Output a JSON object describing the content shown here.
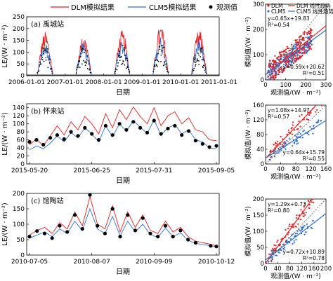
{
  "legend": {
    "items": [
      {
        "name": "DLM模拟结果",
        "color": "#e02020",
        "kind": "line"
      },
      {
        "name": "CLM5模拟结果",
        "color": "#3070d0",
        "kind": "line"
      },
      {
        "name": "观测值",
        "color": "#000000",
        "kind": "dot"
      }
    ]
  },
  "chart_data": [
    {
      "id": "a",
      "type": "line",
      "panel_label": "(a) 禹城站",
      "xlabel": "日期",
      "ylabel": "LE/(W · m⁻²)",
      "ylim": [
        0,
        250
      ],
      "yticks": [
        0,
        50,
        100,
        150,
        200,
        250
      ],
      "xlim": [
        "2006-01-01",
        "2011-01-01"
      ],
      "xticks": [
        "2006-01-01",
        "2007-01-01",
        "2008-01-01",
        "2009-01-01",
        "2010-01-01",
        "2011-01-01"
      ],
      "note_series": "Seasonal pulses each growing season; values approx.",
      "seasons": [
        {
          "start": "2006-05-01",
          "peak_dlm": 185,
          "peak_clm": 140,
          "peak_obs": 120
        },
        {
          "start": "2007-05-01",
          "peak_dlm": 175,
          "peak_clm": 140,
          "peak_obs": 120
        },
        {
          "start": "2008-05-01",
          "peak_dlm": 190,
          "peak_clm": 150,
          "peak_obs": 130
        },
        {
          "start": "2009-05-01",
          "peak_dlm": 215,
          "peak_clm": 165,
          "peak_obs": 140
        },
        {
          "start": "2010-05-01",
          "peak_dlm": 195,
          "peak_clm": 150,
          "peak_obs": 130
        }
      ]
    },
    {
      "id": "b",
      "type": "line",
      "panel_label": "(b) 怀来站",
      "xlabel": "日期",
      "ylabel": "LE/(W · m⁻²)",
      "ylim": [
        0,
        150
      ],
      "yticks": [
        0,
        20,
        40,
        60,
        80,
        100,
        120,
        140
      ],
      "xticks": [
        "2015-05-20",
        "2015-06-25",
        "2015-07-31",
        "2015-09-05"
      ],
      "x_days": [
        0,
        4,
        8,
        12,
        16,
        20,
        24,
        28,
        32,
        36,
        40,
        44,
        48,
        52,
        56,
        60,
        64,
        68,
        72,
        76,
        80,
        84,
        88,
        92,
        96,
        100,
        104,
        108
      ],
      "dlm": [
        48,
        62,
        45,
        70,
        95,
        72,
        105,
        85,
        118,
        100,
        75,
        125,
        90,
        135,
        110,
        142,
        118,
        100,
        140,
        95,
        120,
        130,
        100,
        115,
        85,
        80,
        60,
        58
      ],
      "clm": [
        35,
        45,
        38,
        52,
        70,
        55,
        78,
        65,
        90,
        75,
        55,
        95,
        68,
        100,
        82,
        108,
        92,
        76,
        110,
        72,
        90,
        98,
        75,
        85,
        60,
        55,
        40,
        38
      ],
      "obs": [
        55,
        60,
        48,
        65,
        72,
        62,
        80,
        70,
        90,
        75,
        60,
        95,
        72,
        100,
        85,
        105,
        90,
        78,
        108,
        75,
        88,
        95,
        72,
        82,
        58,
        50,
        42,
        45
      ]
    },
    {
      "id": "c",
      "type": "line",
      "panel_label": "(c) 馆陶站",
      "xlabel": "日期",
      "ylabel": "LE/(W · m⁻²)",
      "ylim": [
        0,
        200
      ],
      "yticks": [
        0,
        50,
        100,
        150,
        200
      ],
      "xticks": [
        "2010-07-05",
        "2010-08-07",
        "2010-09-09",
        "2010-10-12"
      ],
      "x_days": [
        0,
        4,
        8,
        12,
        16,
        20,
        24,
        28,
        32,
        36,
        40,
        44,
        48,
        52,
        56,
        60,
        64,
        68,
        72,
        76,
        80,
        84,
        88,
        96,
        99
      ],
      "dlm": [
        65,
        80,
        90,
        70,
        105,
        85,
        140,
        95,
        190,
        100,
        85,
        160,
        75,
        140,
        90,
        130,
        80,
        70,
        110,
        75,
        90,
        60,
        45,
        35,
        30
      ],
      "clm": [
        55,
        65,
        75,
        60,
        85,
        70,
        110,
        80,
        150,
        85,
        70,
        125,
        62,
        110,
        75,
        100,
        66,
        58,
        88,
        60,
        72,
        48,
        38,
        30,
        26
      ],
      "obs": [
        60,
        78,
        70,
        55,
        95,
        75,
        130,
        85,
        195,
        95,
        70,
        150,
        60,
        130,
        80,
        120,
        70,
        60,
        95,
        60,
        80,
        50,
        40,
        30,
        28
      ]
    }
  ],
  "scatter_data": [
    {
      "id": "a",
      "type": "scatter",
      "xlabel": "观测值/(W · m⁻²)",
      "ylabel": "模拟值/(W · m⁻²)",
      "xlim": [
        0,
        300
      ],
      "ylim": [
        0,
        300
      ],
      "xticks": [
        0,
        100,
        200,
        300
      ],
      "yticks": [
        0,
        100,
        200,
        300
      ],
      "legend_items": [
        {
          "name": "DLM",
          "color": "#e02020",
          "kind": "dot"
        },
        {
          "name": "DLM 线性趋势",
          "color": "#e02020",
          "kind": "line"
        },
        {
          "name": "CLM5",
          "color": "#3070d0",
          "kind": "dot"
        },
        {
          "name": "CLM5 线性趋势",
          "color": "#3070d0",
          "kind": "line"
        }
      ],
      "dlm_eq": "y=0.65x+19.83",
      "dlm_r2": "R²=0.54",
      "clm_eq": "y=0.59x+20.62",
      "clm_r2": "R²=0.51",
      "dlm_fit": [
        0.65,
        19.83
      ],
      "clm_fit": [
        0.59,
        20.62
      ]
    },
    {
      "id": "b",
      "type": "scatter",
      "xlabel": "观测值/(W · m⁻²)",
      "ylabel": "模拟值/(W · m⁻²)",
      "xlim": [
        0,
        160
      ],
      "ylim": [
        0,
        160
      ],
      "xticks": [
        0,
        40,
        80,
        120,
        160
      ],
      "yticks": [
        0,
        40,
        80,
        120,
        160
      ],
      "dlm_eq": "y=1.08x+14.97",
      "dlm_r2": "R²=0.57",
      "clm_eq": "y=0.64x+15.79",
      "clm_r2": "R²=0.55",
      "dlm_fit": [
        1.08,
        14.97
      ],
      "clm_fit": [
        0.64,
        15.79
      ]
    },
    {
      "id": "c",
      "type": "scatter",
      "xlabel": "观测值/(W · m⁻²)",
      "ylabel": "模拟值/(W · m⁻²)",
      "xlim": [
        0,
        200
      ],
      "ylim": [
        0,
        200
      ],
      "xticks": [
        0,
        40,
        80,
        120,
        160,
        200
      ],
      "yticks": [
        0,
        50,
        100,
        150,
        200
      ],
      "dlm_eq": "y=1.29x+0.73",
      "dlm_r2": "R²=0.80",
      "clm_eq": "y=0.72x+10.89",
      "clm_r2": "R²=0.78",
      "dlm_fit": [
        1.29,
        0.73
      ],
      "clm_fit": [
        0.72,
        10.89
      ]
    }
  ]
}
